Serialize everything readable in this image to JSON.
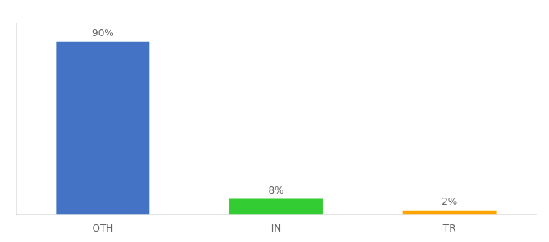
{
  "chart_data": {
    "type": "bar",
    "categories": [
      "OTH",
      "IN",
      "TR"
    ],
    "values": [
      90,
      8,
      2
    ],
    "value_labels": [
      "90%",
      "8%",
      "2%"
    ],
    "colors": [
      "#4472c4",
      "#33cc33",
      "#ffa500"
    ],
    "ylim": [
      0,
      100
    ],
    "data_labels": true,
    "tick_labels": "x",
    "grid": false
  }
}
